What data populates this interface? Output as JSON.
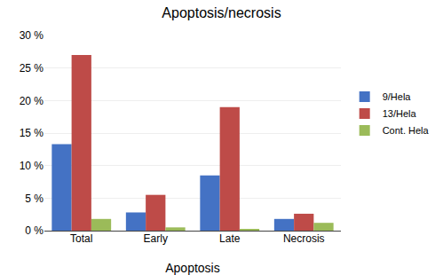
{
  "chart_data": {
    "type": "bar",
    "title": "Apoptosis/necrosis",
    "xlabel": "Apoptosis",
    "categories": [
      "Total",
      "Early",
      "Late",
      "Necrosis"
    ],
    "series": [
      {
        "name": "9/Hela",
        "color": "#4472C4",
        "values": [
          13.3,
          2.8,
          8.5,
          1.8
        ]
      },
      {
        "name": "13/Hela",
        "color": "#BE4B48",
        "values": [
          27.0,
          5.5,
          19.0,
          2.6
        ]
      },
      {
        "name": "Cont. Hela",
        "color": "#9BBB59",
        "values": [
          1.8,
          0.5,
          0.15,
          1.2
        ]
      }
    ],
    "ylim": [
      0,
      30
    ],
    "yticks": [
      {
        "value": 0,
        "label": "0 %"
      },
      {
        "value": 5,
        "label": "5 %"
      },
      {
        "value": 10,
        "label": "10 %"
      },
      {
        "value": 15,
        "label": "15 %"
      },
      {
        "value": 20,
        "label": "20 %"
      },
      {
        "value": 25,
        "label": "25 %"
      },
      {
        "value": 30,
        "label": "30 %"
      }
    ],
    "grid": true,
    "legend": "right"
  }
}
